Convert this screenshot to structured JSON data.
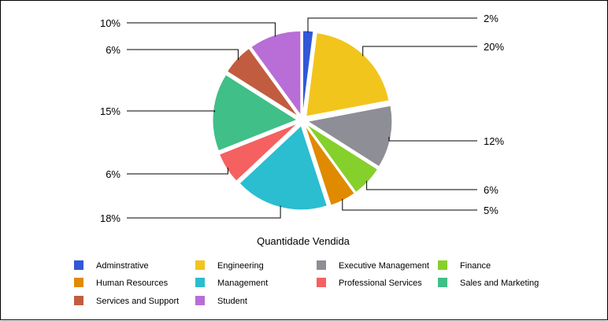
{
  "chart_data": {
    "type": "pie",
    "title": "Quantidade Vendida",
    "legend_position": "bottom",
    "slices": [
      {
        "name": "Adminstrative",
        "value": 2,
        "label": "2%",
        "color": "#3058d8"
      },
      {
        "name": "Engineering",
        "value": 20,
        "label": "20%",
        "color": "#f2c51c"
      },
      {
        "name": "Executive Management",
        "value": 12,
        "label": "12%",
        "color": "#8e8e96"
      },
      {
        "name": "Finance",
        "value": 6,
        "label": "6%",
        "color": "#86d02c"
      },
      {
        "name": "Human Resources",
        "value": 5,
        "label": "5%",
        "color": "#e08a00"
      },
      {
        "name": "Management",
        "value": 18,
        "label": "18%",
        "color": "#2bbdd0"
      },
      {
        "name": "Professional Services",
        "value": 6,
        "label": "6%",
        "color": "#f56060"
      },
      {
        "name": "Sales and Marketing",
        "value": 15,
        "label": "15%",
        "color": "#40bf88"
      },
      {
        "name": "Services and Support",
        "value": 6,
        "label": "6%",
        "color": "#c25c40"
      },
      {
        "name": "Student",
        "value": 10,
        "label": "10%",
        "color": "#b86ed6"
      }
    ]
  }
}
